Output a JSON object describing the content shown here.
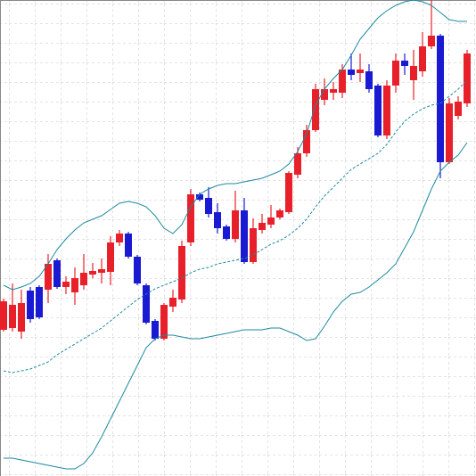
{
  "chart_data": {
    "type": "candlestick",
    "up_color": "#e8202a",
    "down_color": "#1a1ad2",
    "ylim": [
      0,
      534
    ],
    "open": [
      164,
      166,
      162,
      208,
      212,
      209,
      242,
      212,
      206,
      214,
      226,
      228,
      229,
      262,
      272,
      246,
      214,
      174,
      154,
      190,
      198,
      262,
      316,
      312,
      296,
      280,
      266,
      298,
      240,
      276,
      282,
      290,
      296,
      338,
      362,
      388,
      422,
      430,
      430,
      456,
      452,
      454,
      438,
      382,
      438,
      466,
      444,
      454,
      482,
      494,
      352,
      404,
      418
    ],
    "high": [
      199,
      216,
      209,
      212,
      214,
      249,
      244,
      224,
      234,
      249,
      239,
      244,
      269,
      276,
      274,
      248,
      216,
      176,
      194,
      209,
      264,
      322,
      318,
      324,
      306,
      282,
      320,
      312,
      289,
      294,
      304,
      300,
      342,
      369,
      394,
      440,
      446,
      442,
      462,
      474,
      474,
      462,
      440,
      444,
      474,
      474,
      478,
      498,
      534,
      496,
      424,
      426,
      478
    ],
    "low": [
      162,
      162,
      154,
      172,
      176,
      194,
      210,
      204,
      192,
      209,
      222,
      216,
      214,
      258,
      244,
      214,
      170,
      152,
      152,
      184,
      194,
      258,
      308,
      290,
      272,
      264,
      262,
      238,
      238,
      272,
      278,
      288,
      294,
      334,
      358,
      386,
      416,
      422,
      424,
      444,
      442,
      430,
      380,
      378,
      430,
      450,
      422,
      448,
      479,
      334,
      350,
      400,
      414
    ],
    "close": [
      196,
      192,
      194,
      176,
      178,
      238,
      212,
      218,
      222,
      228,
      230,
      232,
      262,
      272,
      246,
      216,
      172,
      154,
      192,
      200,
      258,
      316,
      310,
      294,
      278,
      266,
      298,
      240,
      278,
      284,
      290,
      298,
      340,
      362,
      388,
      434,
      434,
      434,
      456,
      450,
      456,
      434,
      382,
      438,
      466,
      460,
      460,
      482,
      494,
      352,
      418,
      420,
      474
    ],
    "overlays": [
      {
        "color": "#1b8aa0",
        "dashed": false,
        "values": [
          214,
          209,
          212,
          216,
          224,
          238,
          254,
          266,
          276,
          284,
          288,
          292,
          299,
          306,
          308,
          306,
          302,
          292,
          278,
          272,
          282,
          302,
          316,
          322,
          326,
          328,
          328,
          330,
          332,
          334,
          338,
          342,
          350,
          364,
          384,
          416,
          434,
          446,
          456,
          472,
          490,
          502,
          514,
          522,
          528,
          532,
          534,
          532,
          528,
          520,
          512,
          510,
          510
        ]
      },
      {
        "color": "#1b8aa0",
        "dashed": true,
        "values": [
          118,
          116,
          118,
          120,
          124,
          128,
          136,
          142,
          148,
          154,
          160,
          166,
          174,
          182,
          190,
          198,
          204,
          210,
          214,
          218,
          222,
          228,
          232,
          234,
          238,
          240,
          242,
          244,
          248,
          254,
          260,
          264,
          270,
          278,
          288,
          302,
          314,
          324,
          334,
          344,
          350,
          356,
          362,
          372,
          386,
          398,
          406,
          412,
          416,
          418,
          426,
          434,
          444
        ]
      },
      {
        "color": "#1b8aa0",
        "dashed": false,
        "values": [
          20,
          20,
          18,
          16,
          14,
          12,
          10,
          8,
          8,
          14,
          26,
          44,
          64,
          84,
          104,
          124,
          144,
          154,
          158,
          158,
          156,
          154,
          154,
          156,
          158,
          160,
          162,
          164,
          164,
          164,
          166,
          166,
          162,
          158,
          152,
          154,
          168,
          184,
          196,
          204,
          206,
          212,
          220,
          228,
          238,
          256,
          274,
          298,
          322,
          342,
          352,
          360,
          374
        ]
      }
    ]
  }
}
